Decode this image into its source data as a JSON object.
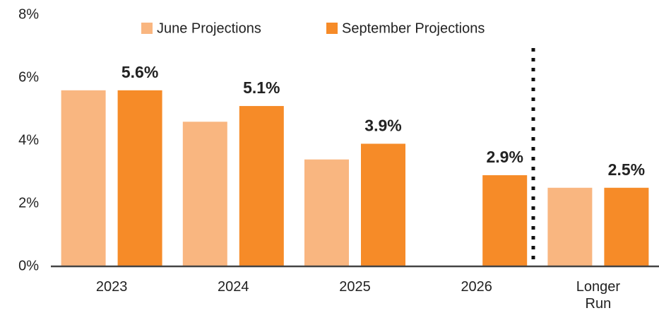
{
  "chart_data": {
    "type": "bar",
    "categories": [
      "2023",
      "2024",
      "2025",
      "2026",
      "Longer Run"
    ],
    "series": [
      {
        "name": "June Projections",
        "color": "#f9b680",
        "values": [
          5.6,
          4.6,
          3.4,
          null,
          2.5
        ]
      },
      {
        "name": "September Projections",
        "color": "#f68b28",
        "values": [
          5.6,
          5.1,
          3.9,
          2.9,
          2.5
        ],
        "value_labels": [
          "5.6%",
          "5.1%",
          "3.9%",
          "2.9%",
          "2.5%"
        ]
      }
    ],
    "ylim": [
      0,
      8
    ],
    "yticks": [
      {
        "value": 0,
        "label": "0%"
      },
      {
        "value": 2,
        "label": "2%"
      },
      {
        "value": 4,
        "label": "4%"
      },
      {
        "value": 6,
        "label": "6%"
      },
      {
        "value": 8,
        "label": "8%"
      }
    ],
    "legend": "top",
    "grid": false
  }
}
